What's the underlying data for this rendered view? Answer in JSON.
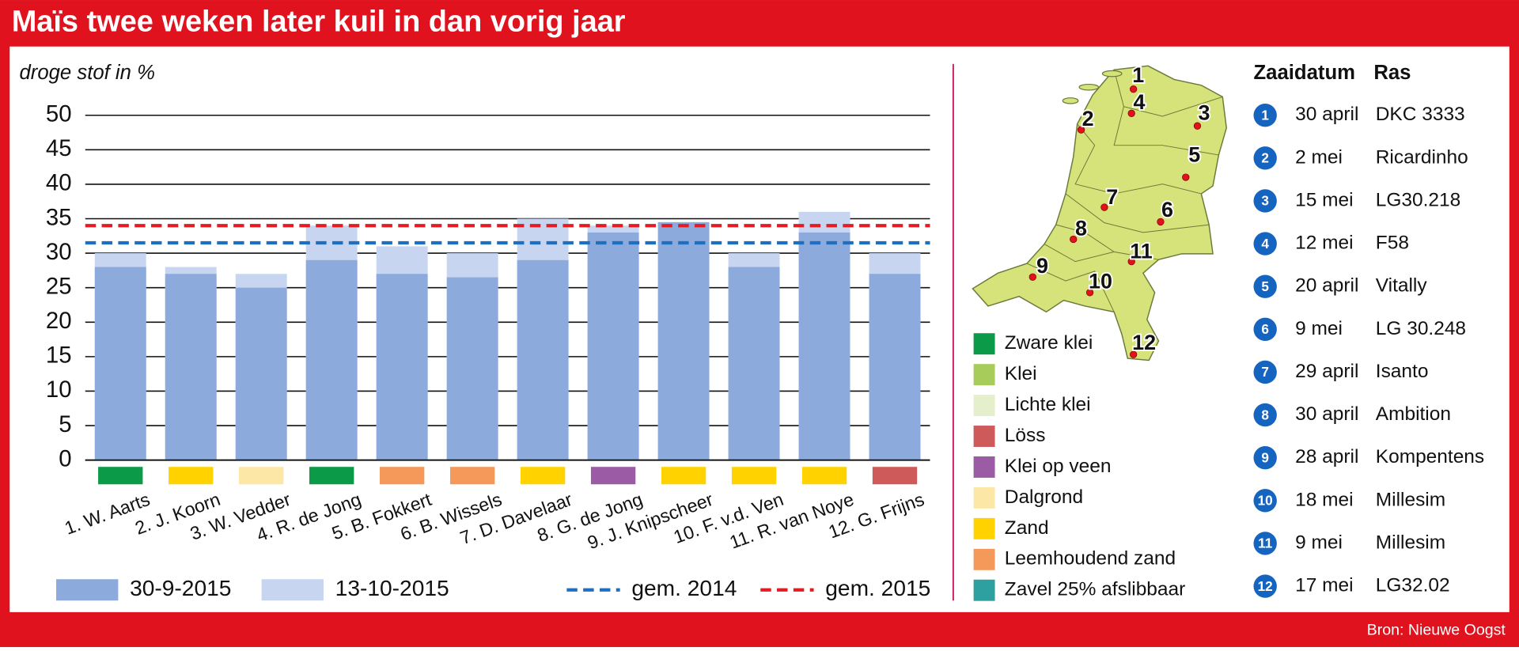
{
  "header": {
    "title": "Maïs twee weken later kuil in dan vorig jaar"
  },
  "source": "Bron: Nieuwe Oogst",
  "chart_data": {
    "type": "bar",
    "y_label": "droge stof in %",
    "categories": [
      "1. W. Aarts",
      "2. J. Koorn",
      "3. W. Vedder",
      "4. R. de Jong",
      "5. B. Fokkert",
      "6. B. Wissels",
      "7. D. Davelaar",
      "8. G. de Jong",
      "9. J. Knipscheer",
      "10. F. v.d. Ven",
      "11. R. van Noye",
      "12. G. Frijns"
    ],
    "category_colors": [
      "#0a9a48",
      "#ffd200",
      "#fde7a6",
      "#0a9a48",
      "#f4995a",
      "#f4995a",
      "#ffd200",
      "#9b5ba5",
      "#ffd200",
      "#ffd200",
      "#ffd200",
      "#cf5a5a"
    ],
    "series": [
      {
        "name": "30-9-2015",
        "color": "#8caadc",
        "values": [
          28,
          27,
          25,
          29,
          27,
          26.5,
          29,
          33,
          34.5,
          28,
          33,
          27
        ]
      },
      {
        "name": "13-10-2015",
        "color": "#c8d5f0",
        "values": [
          30,
          28,
          27,
          34,
          31,
          30,
          35,
          34,
          34.5,
          30,
          36,
          30
        ]
      }
    ],
    "reference_lines": [
      {
        "name": "gem. 2014",
        "value": 31.5,
        "color": "#1f6fc0"
      },
      {
        "name": "gem. 2015",
        "value": 34,
        "color": "#e31b23"
      }
    ],
    "ylim": [
      0,
      50
    ],
    "yticks": [
      0,
      5,
      10,
      15,
      20,
      25,
      30,
      35,
      40,
      45,
      50
    ],
    "grid": true
  },
  "soil_legend": [
    {
      "name": "Zware klei",
      "color": "#0a9a48"
    },
    {
      "name": "Klei",
      "color": "#a8cc5a"
    },
    {
      "name": "Lichte klei",
      "color": "#e6efcc"
    },
    {
      "name": "Löss",
      "color": "#cf5a5a"
    },
    {
      "name": "Klei op veen",
      "color": "#9b5ba5"
    },
    {
      "name": "Dalgrond",
      "color": "#fde7a6"
    },
    {
      "name": "Zand",
      "color": "#ffd200"
    },
    {
      "name": "Leemhoudend zand",
      "color": "#f4995a"
    },
    {
      "name": "Zavel 25% afslibbaar",
      "color": "#2ea0a0"
    }
  ],
  "map_pins": [
    "1",
    "4",
    "3",
    "2",
    "5",
    "7",
    "6",
    "8",
    "11",
    "9",
    "10",
    "12"
  ],
  "table": {
    "headers": [
      "Zaaidatum",
      "Ras"
    ],
    "rows": [
      [
        "1",
        "30 april",
        "DKC 3333"
      ],
      [
        "2",
        "2 mei",
        "Ricardinho"
      ],
      [
        "3",
        "15 mei",
        "LG30.218"
      ],
      [
        "4",
        "12 mei",
        "F58"
      ],
      [
        "5",
        "20 april",
        "Vitally"
      ],
      [
        "6",
        "9 mei",
        "LG 30.248"
      ],
      [
        "7",
        "29 april",
        "Isanto"
      ],
      [
        "8",
        "30 april",
        "Ambition"
      ],
      [
        "9",
        "28 april",
        "Kompentens"
      ],
      [
        "10",
        "18 mei",
        "Millesim"
      ],
      [
        "11",
        "9 mei",
        "Millesim"
      ],
      [
        "12",
        "17 mei",
        "LG32.02"
      ]
    ]
  }
}
